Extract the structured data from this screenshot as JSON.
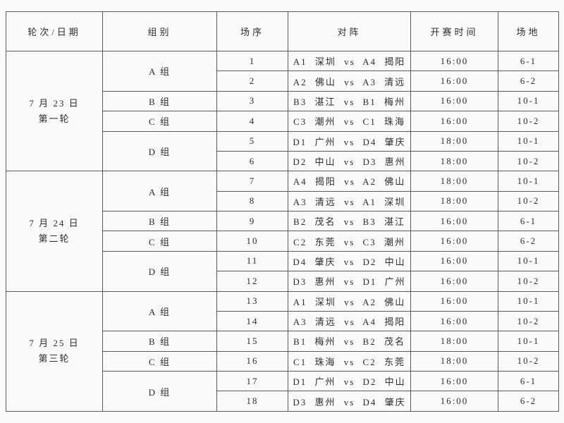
{
  "table": {
    "headers": [
      "轮次/日期",
      "组别",
      "场序",
      "对阵",
      "开赛时间",
      "场地"
    ],
    "sections": [
      {
        "date_line1": "7 月 23 日",
        "date_line2": "第一轮",
        "groups": [
          {
            "label": "A 组",
            "matches": [
              {
                "no": "1",
                "match": "A1 深圳 vs A4 揭阳",
                "time": "16:00",
                "venue": "6-1"
              },
              {
                "no": "2",
                "match": "A2 佛山 vs A3 清远",
                "time": "16:00",
                "venue": "6-2"
              }
            ]
          },
          {
            "label": "B 组",
            "matches": [
              {
                "no": "3",
                "match": "B3 湛江 vs B1 梅州",
                "time": "16:00",
                "venue": "10-1"
              }
            ]
          },
          {
            "label": "C 组",
            "matches": [
              {
                "no": "4",
                "match": "C3 潮州 vs C1 珠海",
                "time": "16:00",
                "venue": "10-2"
              }
            ]
          },
          {
            "label": "D 组",
            "matches": [
              {
                "no": "5",
                "match": "D1 广州 vs D4 肇庆",
                "time": "18:00",
                "venue": "10-1"
              },
              {
                "no": "6",
                "match": "D2 中山 vs D3 惠州",
                "time": "18:00",
                "venue": "10-2"
              }
            ]
          }
        ]
      },
      {
        "date_line1": "7 月 24 日",
        "date_line2": "第二轮",
        "groups": [
          {
            "label": "A 组",
            "matches": [
              {
                "no": "7",
                "match": "A4 揭阳 vs A2 佛山",
                "time": "18:00",
                "venue": "10-1"
              },
              {
                "no": "8",
                "match": "A3 清远 vs A1 深圳",
                "time": "18:00",
                "venue": "10-2"
              }
            ]
          },
          {
            "label": "B 组",
            "matches": [
              {
                "no": "9",
                "match": "B2 茂名 vs B3 湛江",
                "time": "16:00",
                "venue": "6-1"
              }
            ]
          },
          {
            "label": "C 组",
            "matches": [
              {
                "no": "10",
                "match": "C2 东莞 vs C3 潮州",
                "time": "16:00",
                "venue": "6-2"
              }
            ]
          },
          {
            "label": "D 组",
            "matches": [
              {
                "no": "11",
                "match": "D4 肇庆 vs D2 中山",
                "time": "16:00",
                "venue": "10-1"
              },
              {
                "no": "12",
                "match": "D3 惠州 vs D1 广州",
                "time": "16:00",
                "venue": "10-2"
              }
            ]
          }
        ]
      },
      {
        "date_line1": "7 月 25 日",
        "date_line2": "第三轮",
        "groups": [
          {
            "label": "A 组",
            "matches": [
              {
                "no": "13",
                "match": "A1 深圳 vs A2 佛山",
                "time": "16:00",
                "venue": "10-1"
              },
              {
                "no": "14",
                "match": "A3 清远 vs A4 揭阳",
                "time": "16:00",
                "venue": "10-2"
              }
            ]
          },
          {
            "label": "B 组",
            "matches": [
              {
                "no": "15",
                "match": "B1 梅州 vs B2 茂名",
                "time": "18:00",
                "venue": "10-1"
              }
            ]
          },
          {
            "label": "C 组",
            "matches": [
              {
                "no": "16",
                "match": "C1 珠海 vs C2 东莞",
                "time": "18:00",
                "venue": "10-2"
              }
            ]
          },
          {
            "label": "D 组",
            "matches": [
              {
                "no": "17",
                "match": "D1 广州 vs D2 中山",
                "time": "16:00",
                "venue": "6-1"
              },
              {
                "no": "18",
                "match": "D3 惠州 vs D4 肇庆",
                "time": "16:00",
                "venue": "6-2"
              }
            ]
          }
        ]
      }
    ]
  }
}
